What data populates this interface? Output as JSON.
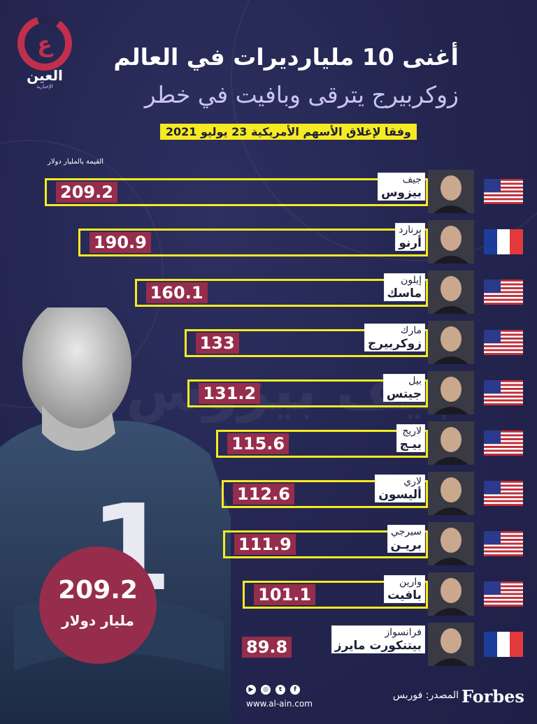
{
  "brand": {
    "logo_text": "العين",
    "logo_sub": "الإخبارية"
  },
  "header": {
    "title": "أغنى 10 مليارديرات في العالم",
    "subtitle": "زوكربيرج يترقى وبافيت في خطر",
    "note": "وفقا لإغلاق الأسهم الأمريكية 23 يوليو 2021",
    "units": "القيمة بالمليار دولار"
  },
  "hero": {
    "rank": "1",
    "value": "209.2",
    "unit": "مليار دولار",
    "ghost_text": "جيف بيزوس"
  },
  "colors": {
    "bg": "#23254f",
    "accent": "#f6ea22",
    "value_box": "#962d4d"
  },
  "chart_data": {
    "type": "bar",
    "ylabel": "القيمة بالمليار دولار",
    "rows": [
      {
        "first": "جيف",
        "last": "بيزوس",
        "value": 209.2,
        "value_text": "209.2",
        "country": "USA"
      },
      {
        "first": "برنارد",
        "last": "أرنو",
        "value": 190.9,
        "value_text": "190.9",
        "country": "France"
      },
      {
        "first": "إيلون",
        "last": "ماسك",
        "value": 160.1,
        "value_text": "160.1",
        "country": "USA"
      },
      {
        "first": "مارك",
        "last": "زوكربيرج",
        "value": 133,
        "value_text": "133",
        "country": "USA"
      },
      {
        "first": "بيل",
        "last": "جيتس",
        "value": 131.2,
        "value_text": "131.2",
        "country": "USA"
      },
      {
        "first": "لاريج",
        "last": "بيـج",
        "value": 115.6,
        "value_text": "115.6",
        "country": "USA"
      },
      {
        "first": "لاري",
        "last": "أليسون",
        "value": 112.6,
        "value_text": "112.6",
        "country": "USA"
      },
      {
        "first": "سيرجي",
        "last": "بريـن",
        "value": 111.9,
        "value_text": "111.9",
        "country": "USA"
      },
      {
        "first": "وارين",
        "last": "بافيت",
        "value": 101.1,
        "value_text": "101.1",
        "country": "USA"
      },
      {
        "first": "فرانسواز",
        "last": "بيتنكورت مايرز",
        "value": 89.8,
        "value_text": "89.8",
        "country": "France"
      }
    ]
  },
  "footer": {
    "forbes": "Forbes",
    "source": "المصدر: فوربس",
    "url": "www.al-ain.com",
    "social_icons": [
      "youtube-icon",
      "instagram-icon",
      "twitter-icon",
      "facebook-icon"
    ]
  }
}
